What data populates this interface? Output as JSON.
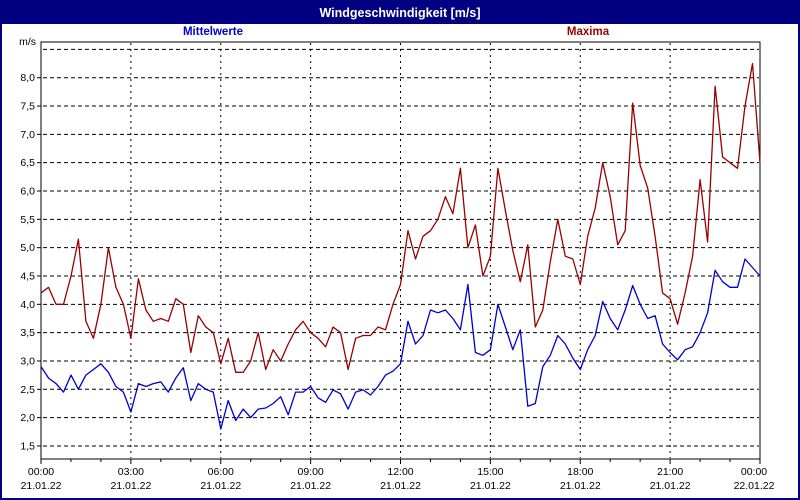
{
  "window": {
    "title": "Windgeschwindigkeit [m/s]"
  },
  "colors": {
    "titlebar_bg": "#000080",
    "titlebar_text": "#ffffff",
    "border": "#000080",
    "background": "#ffffff",
    "grid": "#000000",
    "mittelwerte": "#0000cc",
    "maxima": "#990000"
  },
  "chart_data": {
    "type": "line",
    "title": "Windgeschwindigkeit [m/s]",
    "unit_label": "m/s",
    "grid": true,
    "legend_position": "top",
    "x_range_hours": [
      0,
      24
    ],
    "x_step_hours": 0.25,
    "x_major_every_hours": 3,
    "x_minor_every_hours": 1,
    "x_tick_labels": [
      {
        "time": "00:00",
        "date": "21.01.22"
      },
      {
        "time": "03:00",
        "date": "21.01.22"
      },
      {
        "time": "06:00",
        "date": "21.01.22"
      },
      {
        "time": "09:00",
        "date": "21.01.22"
      },
      {
        "time": "12:00",
        "date": "21.01.22"
      },
      {
        "time": "15:00",
        "date": "21.01.22"
      },
      {
        "time": "18:00",
        "date": "21.01.22"
      },
      {
        "time": "21:00",
        "date": "21.01.22"
      },
      {
        "time": "00:00",
        "date": "22.01.22"
      }
    ],
    "ylim": [
      1.27,
      8.63
    ],
    "y_gridlines": [
      1.5,
      2.0,
      2.5,
      3.0,
      3.5,
      4.0,
      4.5,
      5.0,
      5.5,
      6.0,
      6.5,
      7.0,
      7.5,
      8.0,
      8.5
    ],
    "y_label_max": 8.0,
    "y_decimal_separator": ",",
    "series": [
      {
        "name": "Mittelwerte",
        "color": "#0000cc",
        "values": [
          2.9,
          2.7,
          2.6,
          2.45,
          2.75,
          2.5,
          2.75,
          2.85,
          2.95,
          2.8,
          2.55,
          2.45,
          2.1,
          2.6,
          2.55,
          2.6,
          2.63,
          2.45,
          2.7,
          2.88,
          2.3,
          2.6,
          2.5,
          2.45,
          1.8,
          2.3,
          1.95,
          2.15,
          2.0,
          2.15,
          2.17,
          2.25,
          2.37,
          2.05,
          2.45,
          2.45,
          2.55,
          2.35,
          2.27,
          2.49,
          2.42,
          2.15,
          2.45,
          2.49,
          2.4,
          2.55,
          2.75,
          2.82,
          2.95,
          3.7,
          3.3,
          3.45,
          3.9,
          3.85,
          3.9,
          3.75,
          3.55,
          4.35,
          3.15,
          3.1,
          3.2,
          4.0,
          3.6,
          3.2,
          3.55,
          2.2,
          2.25,
          2.9,
          3.1,
          3.45,
          3.3,
          3.05,
          2.85,
          3.2,
          3.45,
          4.05,
          3.75,
          3.55,
          3.9,
          4.33,
          4.0,
          3.75,
          3.8,
          3.3,
          3.15,
          3.02,
          3.2,
          3.25,
          3.5,
          3.85,
          4.6,
          4.4,
          4.3,
          4.3,
          4.8,
          4.65,
          4.5
        ]
      },
      {
        "name": "Maxima",
        "color": "#990000",
        "values": [
          4.2,
          4.3,
          4.0,
          4.0,
          4.5,
          5.15,
          3.7,
          3.4,
          4.0,
          5.0,
          4.3,
          4.0,
          3.4,
          4.45,
          3.9,
          3.7,
          3.75,
          3.7,
          4.1,
          4.0,
          3.15,
          3.8,
          3.6,
          3.5,
          2.95,
          3.4,
          2.8,
          2.8,
          3.0,
          3.5,
          2.85,
          3.2,
          3.0,
          3.3,
          3.55,
          3.7,
          3.5,
          3.4,
          3.25,
          3.6,
          3.5,
          2.85,
          3.4,
          3.45,
          3.45,
          3.6,
          3.55,
          4.0,
          4.35,
          5.3,
          4.8,
          5.2,
          5.3,
          5.5,
          5.9,
          5.6,
          6.4,
          5.0,
          5.4,
          4.5,
          4.85,
          6.4,
          5.65,
          4.95,
          4.4,
          5.05,
          3.6,
          3.9,
          4.75,
          5.5,
          4.85,
          4.8,
          4.35,
          5.2,
          5.7,
          6.5,
          5.9,
          5.05,
          5.3,
          7.55,
          6.45,
          6.05,
          5.2,
          4.2,
          4.1,
          3.65,
          4.2,
          4.85,
          6.2,
          5.1,
          7.85,
          6.6,
          6.5,
          6.4,
          7.5,
          8.25,
          6.5
        ]
      }
    ]
  }
}
